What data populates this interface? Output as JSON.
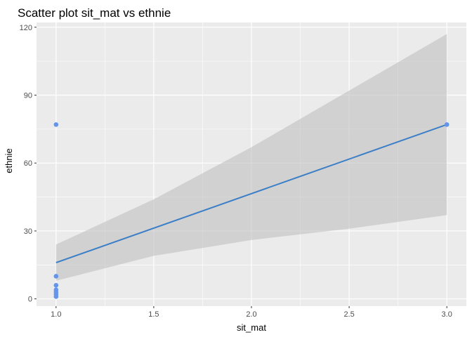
{
  "chart_data": {
    "type": "scatter",
    "title": "Scatter plot sit_mat vs ethnie",
    "xlabel": "sit_mat",
    "ylabel": "ethnie",
    "xlim": [
      0.9,
      3.1
    ],
    "ylim": [
      -3.2,
      122.1
    ],
    "x_ticks": [
      1.0,
      1.5,
      2.0,
      2.5,
      3.0
    ],
    "x_tick_labels": [
      "1.0",
      "1.5",
      "2.0",
      "2.5",
      "3.0"
    ],
    "y_ticks": [
      0,
      30,
      60,
      90,
      120
    ],
    "y_tick_labels": [
      "0",
      "30",
      "60",
      "90",
      "120"
    ],
    "grid": true,
    "legend": "none",
    "points": [
      {
        "x": 1,
        "y": 77
      },
      {
        "x": 1,
        "y": 10
      },
      {
        "x": 1,
        "y": 6
      },
      {
        "x": 1,
        "y": 4
      },
      {
        "x": 1,
        "y": 3
      },
      {
        "x": 1,
        "y": 2
      },
      {
        "x": 1,
        "y": 1
      },
      {
        "x": 3,
        "y": 77
      }
    ],
    "fit_line": {
      "x": [
        1,
        3
      ],
      "y": [
        16,
        77
      ]
    },
    "confidence_band": {
      "x": [
        1.0,
        1.5,
        2.0,
        2.5,
        3.0
      ],
      "upper": [
        24,
        44,
        67,
        92,
        117
      ],
      "lower": [
        8,
        19,
        26,
        31,
        37
      ]
    },
    "colors": {
      "panel": "#ebebeb",
      "grid_major": "#ffffff",
      "points": "#6495ed",
      "line": "#3a7ec7",
      "band": "#c0c0c0"
    }
  }
}
